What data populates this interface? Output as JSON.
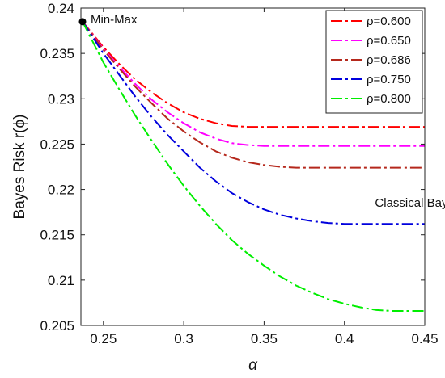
{
  "chart_data": {
    "type": "line",
    "xlabel": "α",
    "ylabel": "Bayes Risk r(ϕ)",
    "xlim": [
      0.236,
      0.45
    ],
    "ylim": [
      0.205,
      0.24
    ],
    "xticks": [
      0.25,
      0.3,
      0.35,
      0.4,
      0.45
    ],
    "yticks": [
      0.205,
      0.21,
      0.215,
      0.22,
      0.225,
      0.23,
      0.235,
      0.24
    ],
    "xtick_labels": [
      "0.25",
      "0.3",
      "0.35",
      "0.4",
      "0.45"
    ],
    "ytick_labels": [
      "0.205",
      "0.21",
      "0.215",
      "0.22",
      "0.225",
      "0.23",
      "0.235",
      "0.24"
    ],
    "grid": false,
    "legend_position": "top-right",
    "line_style": "dash-dot",
    "series": [
      {
        "name": "ρ=0.600",
        "color": "#ff0000",
        "x": [
          0.237,
          0.25,
          0.26,
          0.27,
          0.28,
          0.29,
          0.3,
          0.31,
          0.32,
          0.33,
          0.34,
          0.45
        ],
        "y": [
          0.2385,
          0.2357,
          0.2338,
          0.2321,
          0.2307,
          0.2295,
          0.2285,
          0.2278,
          0.2273,
          0.227,
          0.2269,
          0.2269
        ]
      },
      {
        "name": "ρ=0.650",
        "color": "#ff00ff",
        "x": [
          0.237,
          0.25,
          0.26,
          0.27,
          0.28,
          0.29,
          0.3,
          0.31,
          0.32,
          0.33,
          0.34,
          0.35,
          0.45
        ],
        "y": [
          0.2385,
          0.2355,
          0.2335,
          0.2316,
          0.2299,
          0.2285,
          0.2273,
          0.2263,
          0.2256,
          0.2251,
          0.2249,
          0.2248,
          0.2248
        ]
      },
      {
        "name": "ρ=0.686",
        "color": "#b5281c",
        "x": [
          0.237,
          0.25,
          0.26,
          0.27,
          0.28,
          0.29,
          0.3,
          0.31,
          0.32,
          0.33,
          0.34,
          0.35,
          0.36,
          0.37,
          0.45
        ],
        "y": [
          0.2385,
          0.2354,
          0.2333,
          0.2313,
          0.2295,
          0.2278,
          0.2264,
          0.2252,
          0.2242,
          0.2235,
          0.223,
          0.2227,
          0.2225,
          0.2224,
          0.2224
        ]
      },
      {
        "name": "ρ=0.750",
        "color": "#0000dd",
        "x": [
          0.237,
          0.25,
          0.26,
          0.27,
          0.28,
          0.29,
          0.3,
          0.31,
          0.32,
          0.33,
          0.34,
          0.35,
          0.36,
          0.37,
          0.38,
          0.39,
          0.4,
          0.45
        ],
        "y": [
          0.2385,
          0.235,
          0.2326,
          0.2302,
          0.228,
          0.226,
          0.2242,
          0.2224,
          0.2209,
          0.2196,
          0.2186,
          0.2178,
          0.2172,
          0.2168,
          0.2165,
          0.2163,
          0.2162,
          0.2162
        ]
      },
      {
        "name": "ρ=0.800",
        "color": "#00ee00",
        "x": [
          0.237,
          0.25,
          0.26,
          0.27,
          0.28,
          0.29,
          0.3,
          0.31,
          0.32,
          0.33,
          0.34,
          0.35,
          0.36,
          0.37,
          0.38,
          0.39,
          0.4,
          0.41,
          0.42,
          0.43,
          0.44,
          0.45
        ],
        "y": [
          0.2385,
          0.234,
          0.231,
          0.2281,
          0.2254,
          0.2228,
          0.2204,
          0.2182,
          0.2162,
          0.2144,
          0.2129,
          0.2116,
          0.2104,
          0.2094,
          0.2086,
          0.2079,
          0.2074,
          0.207,
          0.2067,
          0.2066,
          0.2066,
          0.2066
        ]
      }
    ],
    "point": {
      "label": "Min-Max",
      "x": 0.237,
      "y": 0.2385,
      "color": "#000000"
    },
    "annotations": [
      {
        "text": "Classical Bayes",
        "x": 0.419,
        "y": 0.2181
      }
    ]
  }
}
